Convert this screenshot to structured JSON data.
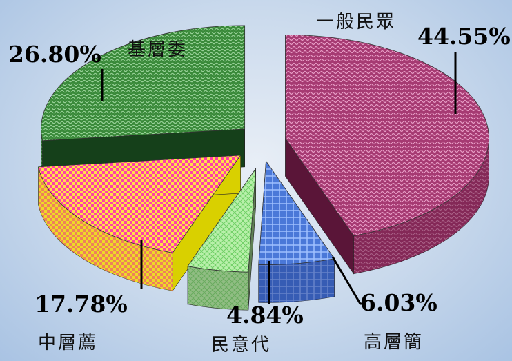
{
  "chart_data": {
    "type": "pie",
    "title": "",
    "categories": [
      "一般民眾",
      "高層簡",
      "民意代",
      "中層薦",
      "基層委"
    ],
    "values": [
      44.55,
      6.03,
      4.84,
      17.78,
      26.8
    ],
    "value_labels": [
      "44.55%",
      "6.03%",
      "4.84%",
      "17.78%",
      "26.80%"
    ],
    "style": "3d-exploded",
    "colors": [
      "#b0407a",
      "#4a78d8",
      "#a8e89a",
      "#ff4fb0",
      "#3a8a3a"
    ]
  }
}
